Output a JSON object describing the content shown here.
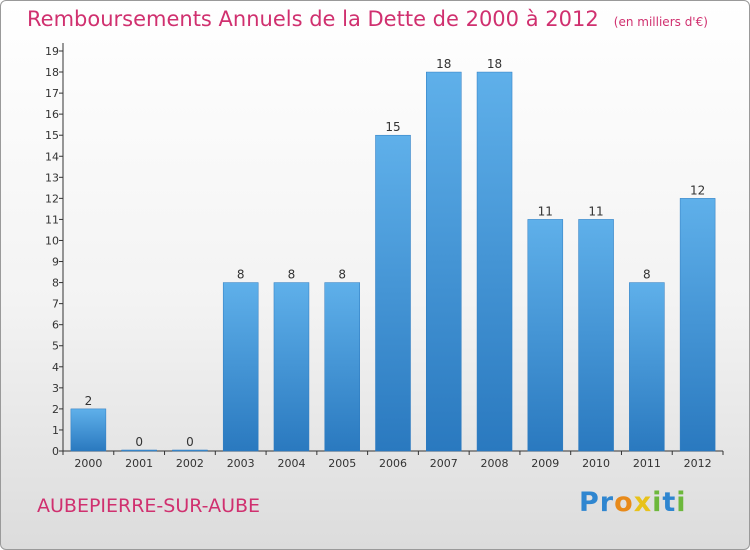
{
  "chart_data": {
    "type": "bar",
    "title": "Remboursements Annuels de la Dette de 2000 à 2012",
    "unit": "(en milliers d'€)",
    "categories": [
      "2000",
      "2001",
      "2002",
      "2003",
      "2004",
      "2005",
      "2006",
      "2007",
      "2008",
      "2009",
      "2010",
      "2011",
      "2012"
    ],
    "values": [
      2,
      0,
      0,
      8,
      8,
      8,
      15,
      18,
      18,
      11,
      11,
      8,
      12
    ],
    "ylim": [
      0,
      19
    ],
    "yticks": [
      0,
      1,
      2,
      3,
      4,
      5,
      6,
      7,
      8,
      9,
      10,
      11,
      12,
      13,
      14,
      15,
      16,
      17,
      18,
      19
    ],
    "grid": false,
    "colors": {
      "bar": "#4a9ee0",
      "bar_dark": "#2a79bf",
      "title": "#d0306f"
    }
  },
  "commune": "AUBEPIERRE-SUR-AUBE",
  "logo": {
    "text": "Proxiti",
    "letters": [
      "P",
      "r",
      "o",
      "x",
      "i",
      "t",
      "i"
    ],
    "colors": [
      "#2f86d0",
      "#2f86d0",
      "#e88a1a",
      "#e8c21a",
      "#6db83c",
      "#2f86d0",
      "#6db83c"
    ]
  }
}
